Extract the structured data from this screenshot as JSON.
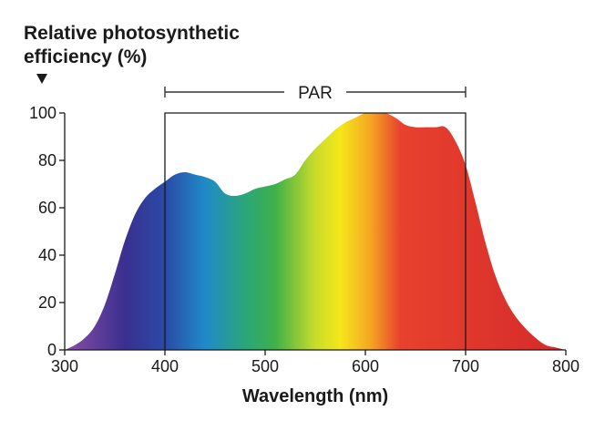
{
  "chart_data": {
    "type": "area",
    "ylabel_lines": [
      "Relative photosynthetic",
      "efficiency (%)"
    ],
    "xlabel": "Wavelength (nm)",
    "xlim": [
      300,
      800
    ],
    "ylim": [
      0,
      100
    ],
    "xticks": [
      300,
      400,
      500,
      600,
      700,
      800
    ],
    "yticks": [
      0,
      20,
      40,
      60,
      80,
      100
    ],
    "grid": false,
    "fill": "visible spectrum color gradient",
    "x": [
      300,
      310,
      320,
      330,
      340,
      350,
      360,
      370,
      380,
      390,
      400,
      410,
      420,
      430,
      440,
      450,
      460,
      470,
      480,
      490,
      500,
      510,
      520,
      530,
      540,
      550,
      560,
      570,
      580,
      590,
      600,
      610,
      620,
      630,
      640,
      650,
      660,
      670,
      680,
      690,
      700,
      710,
      720,
      730,
      740,
      750,
      760,
      770,
      780,
      790,
      800
    ],
    "y": [
      0,
      2,
      5,
      10,
      19,
      32,
      46,
      57,
      64,
      68,
      71,
      74,
      75,
      74,
      73,
      71,
      66,
      65,
      66,
      68,
      69,
      70,
      72,
      74,
      80,
      85,
      89,
      93,
      96,
      98,
      100,
      100,
      100,
      98,
      95,
      94,
      94,
      94,
      94,
      88,
      78,
      62,
      45,
      31,
      21,
      14,
      9,
      5,
      2,
      1,
      0
    ],
    "annotations": [
      {
        "label": "PAR",
        "x_start": 400,
        "x_end": 700
      }
    ],
    "spectrum_stops": [
      {
        "wavelength": 300,
        "color": "#8a4fa6"
      },
      {
        "wavelength": 360,
        "color": "#3a2f8f"
      },
      {
        "wavelength": 400,
        "color": "#2a4aa6"
      },
      {
        "wavelength": 440,
        "color": "#1f8ac8"
      },
      {
        "wavelength": 480,
        "color": "#2aa67a"
      },
      {
        "wavelength": 510,
        "color": "#3fb04a"
      },
      {
        "wavelength": 550,
        "color": "#c8dc2a"
      },
      {
        "wavelength": 575,
        "color": "#f5e71a"
      },
      {
        "wavelength": 605,
        "color": "#f5a623"
      },
      {
        "wavelength": 635,
        "color": "#e8412e"
      },
      {
        "wavelength": 800,
        "color": "#d42a2a"
      }
    ]
  }
}
